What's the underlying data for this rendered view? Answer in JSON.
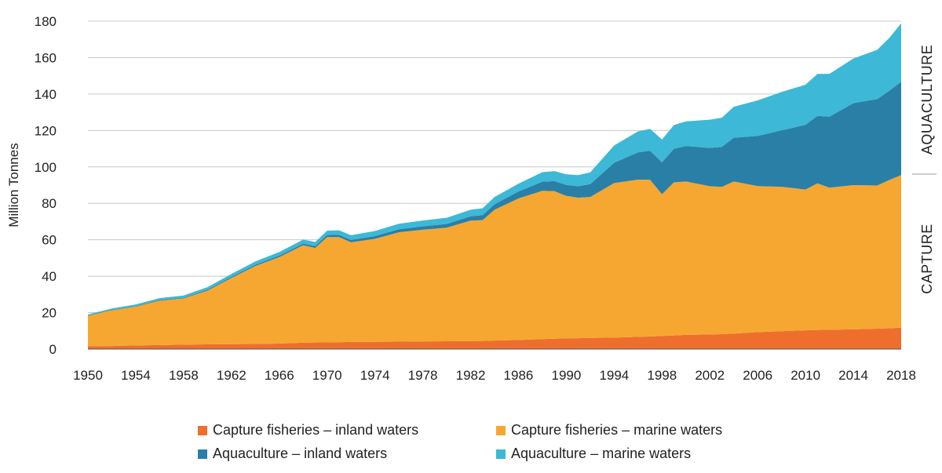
{
  "chart_data": {
    "type": "area",
    "stacked": true,
    "ylabel": "Million Tonnes",
    "ylim": [
      0,
      180
    ],
    "yticks": [
      "0",
      "20",
      "40",
      "60",
      "80",
      "100",
      "120",
      "140",
      "160",
      "180"
    ],
    "xlim": [
      1950,
      2018
    ],
    "xticks": [
      "1950",
      "1954",
      "1958",
      "1962",
      "1966",
      "1970",
      "1974",
      "1978",
      "1982",
      "1986",
      "1990",
      "1994",
      "1998",
      "2002",
      "2006",
      "2010",
      "2014",
      "2018"
    ],
    "grid": "horizontal",
    "legend_position": "bottom",
    "side_labels": {
      "upper": "AQUACULTURE",
      "lower": "CAPTURE"
    },
    "x": [
      1950,
      1952,
      1954,
      1956,
      1958,
      1960,
      1962,
      1964,
      1966,
      1968,
      1969,
      1970,
      1971,
      1972,
      1974,
      1976,
      1978,
      1980,
      1982,
      1983,
      1984,
      1986,
      1988,
      1989,
      1990,
      1991,
      1992,
      1994,
      1996,
      1997,
      1998,
      1999,
      2000,
      2002,
      2003,
      2004,
      2006,
      2008,
      2010,
      2011,
      2012,
      2014,
      2016,
      2017,
      2018
    ],
    "series": [
      {
        "name": "Capture fisheries – inland waters",
        "color": "#ee6f2d",
        "values": [
          1.5,
          1.7,
          2.0,
          2.2,
          2.4,
          2.6,
          2.7,
          2.8,
          3.0,
          3.5,
          3.6,
          3.7,
          3.8,
          3.9,
          4.0,
          4.1,
          4.2,
          4.3,
          4.4,
          4.5,
          4.7,
          5.0,
          5.5,
          5.7,
          5.9,
          6.0,
          6.1,
          6.3,
          6.7,
          6.9,
          7.2,
          7.5,
          7.8,
          8.0,
          8.2,
          8.5,
          9.3,
          9.8,
          10.3,
          10.5,
          10.6,
          10.8,
          11.2,
          11.4,
          11.8
        ]
      },
      {
        "name": "Capture fisheries – marine waters",
        "color": "#f6a731",
        "values": [
          16.8,
          19.6,
          21.3,
          24.4,
          25.4,
          29.5,
          36.3,
          42.8,
          47.5,
          53.5,
          51.9,
          57.8,
          57.7,
          54.7,
          56.5,
          60.0,
          61.3,
          62.3,
          66.1,
          66.3,
          71.8,
          77.7,
          81.4,
          81.0,
          78.2,
          77.1,
          77.4,
          84.8,
          86.3,
          86.0,
          77.8,
          84.0,
          84.2,
          81.4,
          80.8,
          83.5,
          80.2,
          79.3,
          77.3,
          80.5,
          78.0,
          79.2,
          78.6,
          81.4,
          83.7
        ]
      },
      {
        "name": "Aquaculture – inland waters",
        "color": "#2a7fa6",
        "values": [
          0.2,
          0.3,
          0.3,
          0.4,
          0.4,
          0.5,
          0.6,
          0.7,
          0.8,
          0.9,
          1.0,
          1.1,
          1.2,
          1.3,
          1.5,
          1.7,
          1.9,
          2.1,
          2.4,
          2.7,
          3.0,
          3.8,
          5.0,
          5.5,
          6.0,
          6.3,
          7.0,
          11.2,
          15.0,
          16.0,
          17.5,
          18.5,
          19.5,
          21.0,
          22.0,
          24.0,
          27.5,
          31.0,
          35.5,
          37.0,
          39.0,
          45.0,
          47.5,
          49.0,
          51.3
        ]
      },
      {
        "name": "Aquaculture – marine waters",
        "color": "#3db8d6",
        "values": [
          0.5,
          0.7,
          0.9,
          1.0,
          1.2,
          1.4,
          1.6,
          1.8,
          2.0,
          2.2,
          2.3,
          2.4,
          2.5,
          2.6,
          2.8,
          3.0,
          3.2,
          3.4,
          3.6,
          3.8,
          4.0,
          4.3,
          5.2,
          5.5,
          5.8,
          6.1,
          6.5,
          9.5,
          11.5,
          12.0,
          12.5,
          13.0,
          13.5,
          15.5,
          16.0,
          17.0,
          19.5,
          21.0,
          22.0,
          23.0,
          23.5,
          24.5,
          27.0,
          29.0,
          32.0
        ]
      }
    ]
  }
}
